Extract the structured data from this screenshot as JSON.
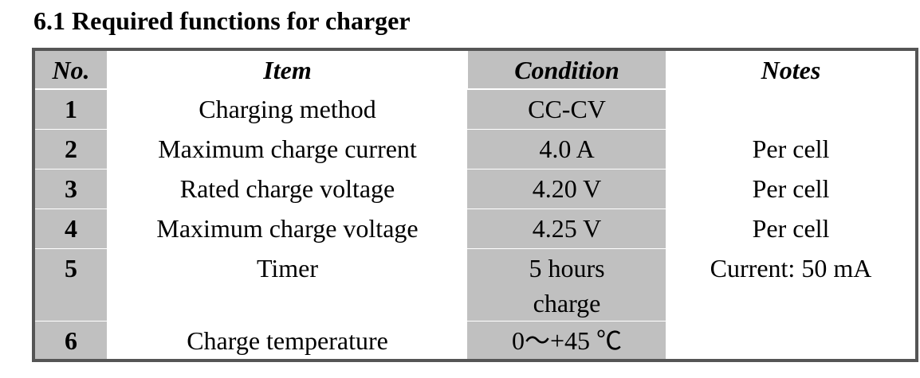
{
  "header": {
    "title": "6.1 Required functions for charger"
  },
  "table": {
    "columns": [
      "No.",
      "Item",
      "Condition",
      "Notes"
    ],
    "rows": [
      {
        "no": "1",
        "item": "Charging method",
        "condition": "CC-CV"
      },
      {
        "no": "2",
        "item": "Maximum charge current",
        "condition": "4.0 A",
        "notes": "Per cell"
      },
      {
        "no": "3",
        "item": "Rated charge voltage",
        "condition": "4.20 V",
        "notes": "Per cell"
      },
      {
        "no": "4",
        "item": "Maximum charge voltage",
        "condition": "4.25 V",
        "notes": "Per cell"
      },
      {
        "no": "5",
        "item": "Timer",
        "condition": "5 hours charge",
        "notes": "Current: 50 mA"
      },
      {
        "no": "6",
        "item": "Charge temperature",
        "condition": "0～+45 ℃"
      }
    ]
  }
}
